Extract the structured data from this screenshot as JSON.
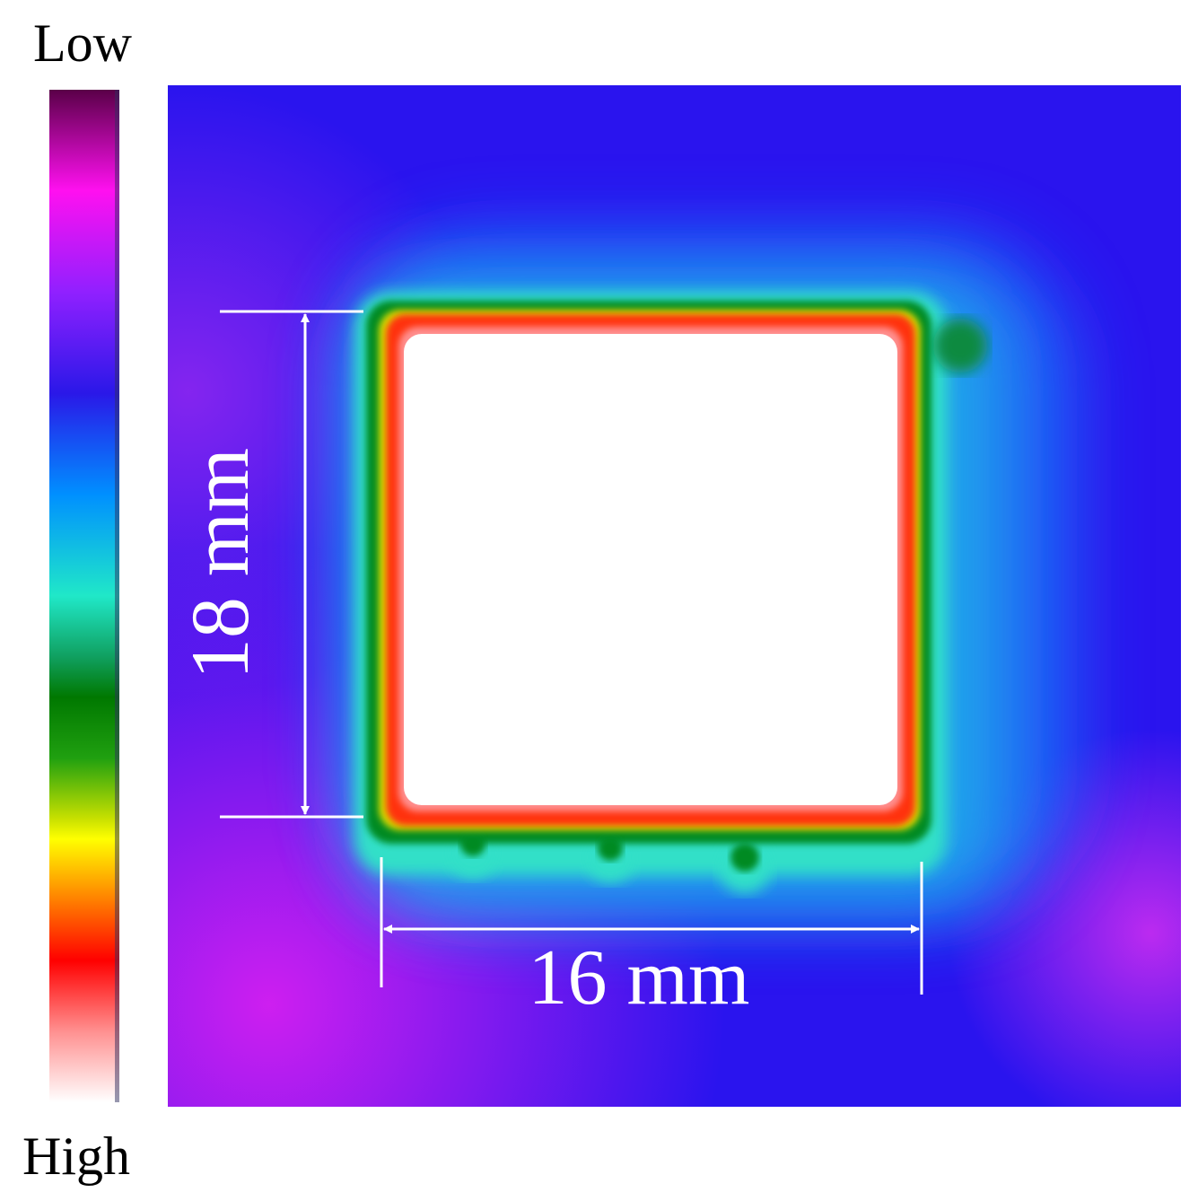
{
  "colorbar": {
    "top_label": "Low",
    "bottom_label": "High"
  },
  "image": {
    "height_label": "18 mm",
    "width_label": "16 mm"
  }
}
